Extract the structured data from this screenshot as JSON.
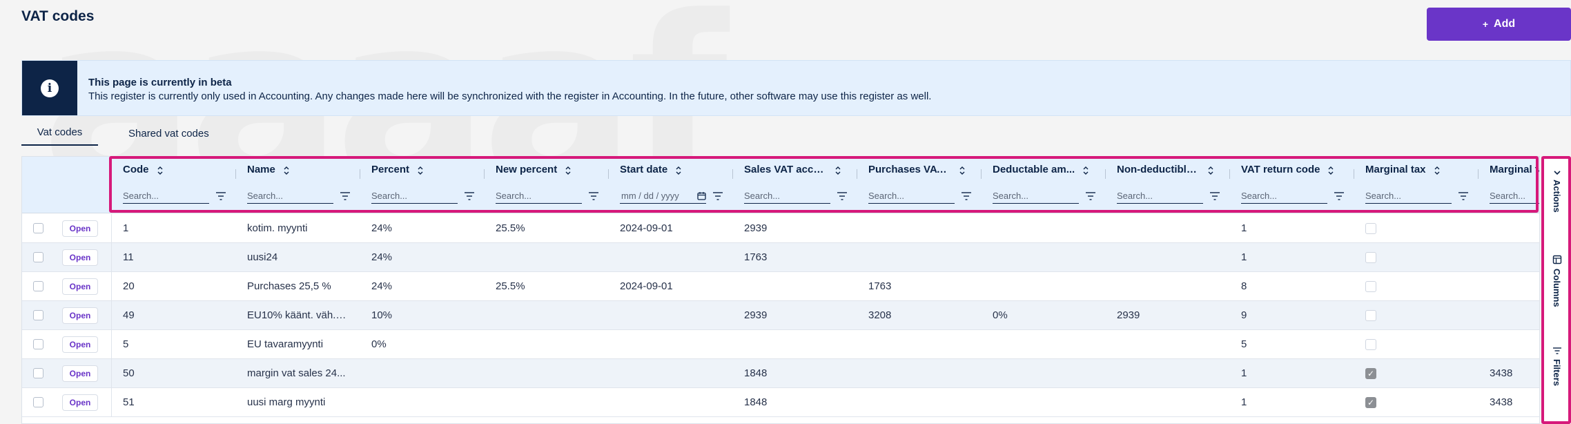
{
  "page": {
    "title": "VAT codes",
    "add_label": "Add",
    "watermark": "aaaaf"
  },
  "banner": {
    "title": "This page is currently in beta",
    "message": "This register is currently only used in Accounting. Any changes made here will be synchronized with the register in Accounting. In the future, other software may use this register as well.",
    "icon": "info-icon"
  },
  "tabs": [
    {
      "label": "Vat codes",
      "active": true
    },
    {
      "label": "Shared vat codes",
      "active": false
    }
  ],
  "columns": [
    {
      "key": "code",
      "label": "Code",
      "search_placeholder": "Search..."
    },
    {
      "key": "name",
      "label": "Name",
      "search_placeholder": "Search..."
    },
    {
      "key": "percent",
      "label": "Percent",
      "search_placeholder": "Search..."
    },
    {
      "key": "new_percent",
      "label": "New percent",
      "search_placeholder": "Search..."
    },
    {
      "key": "start_date",
      "label": "Start date",
      "search_placeholder": "mm / dd / yyyy"
    },
    {
      "key": "sales_vat",
      "label": "Sales VAT acco...",
      "search_placeholder": "Search..."
    },
    {
      "key": "purchases_vat",
      "label": "Purchases VAT ...",
      "search_placeholder": "Search..."
    },
    {
      "key": "deductable",
      "label": "Deductable am...",
      "search_placeholder": "Search..."
    },
    {
      "key": "non_deductible",
      "label": "Non-deductible...",
      "search_placeholder": "Search..."
    },
    {
      "key": "vat_return",
      "label": "VAT return code",
      "search_placeholder": "Search..."
    },
    {
      "key": "marginal_tax",
      "label": "Marginal tax",
      "search_placeholder": "Search..."
    },
    {
      "key": "marginal_t2",
      "label": "Marginal ta",
      "search_placeholder": "Search..."
    }
  ],
  "row_action_label": "Open",
  "rows": [
    {
      "code": "1",
      "name": "kotim. myynti",
      "percent": "24%",
      "new_percent": "25.5%",
      "start_date": "2024-09-01",
      "sales_vat": "2939",
      "purchases_vat": "",
      "deductable": "",
      "non_deductible": "",
      "vat_return": "1",
      "marginal_tax": false,
      "marginal_t2": ""
    },
    {
      "code": "11",
      "name": "uusi24",
      "percent": "24%",
      "new_percent": "",
      "start_date": "",
      "sales_vat": "1763",
      "purchases_vat": "",
      "deductable": "",
      "non_deductible": "",
      "vat_return": "1",
      "marginal_tax": false,
      "marginal_t2": ""
    },
    {
      "code": "20",
      "name": "Purchases 25,5 %",
      "percent": "24%",
      "new_percent": "25.5%",
      "start_date": "2024-09-01",
      "sales_vat": "",
      "purchases_vat": "1763",
      "deductable": "",
      "non_deductible": "",
      "vat_return": "8",
      "marginal_tax": false,
      "marginal_t2": ""
    },
    {
      "code": "49",
      "name": "EU10% käänt. väh.kel...",
      "percent": "10%",
      "new_percent": "",
      "start_date": "",
      "sales_vat": "2939",
      "purchases_vat": "3208",
      "deductable": "0%",
      "non_deductible": "2939",
      "vat_return": "9",
      "marginal_tax": false,
      "marginal_t2": ""
    },
    {
      "code": "5",
      "name": "EU tavaramyynti",
      "percent": "0%",
      "new_percent": "",
      "start_date": "",
      "sales_vat": "",
      "purchases_vat": "",
      "deductable": "",
      "non_deductible": "",
      "vat_return": "5",
      "marginal_tax": false,
      "marginal_t2": ""
    },
    {
      "code": "50",
      "name": "margin vat sales 24...",
      "percent": "",
      "new_percent": "",
      "start_date": "",
      "sales_vat": "1848",
      "purchases_vat": "",
      "deductable": "",
      "non_deductible": "",
      "vat_return": "1",
      "marginal_tax": true,
      "marginal_t2": "3438"
    },
    {
      "code": "51",
      "name": "uusi marg myynti",
      "percent": "",
      "new_percent": "",
      "start_date": "",
      "sales_vat": "1848",
      "purchases_vat": "",
      "deductable": "",
      "non_deductible": "",
      "vat_return": "1",
      "marginal_tax": true,
      "marginal_t2": "3438"
    }
  ],
  "side_panel": [
    {
      "label": "Actions",
      "icon": "chevron-down-icon"
    },
    {
      "label": "Columns",
      "icon": "columns-icon"
    },
    {
      "label": "Filters",
      "icon": "filter-icon"
    }
  ],
  "colors": {
    "accent": "#6a35c8",
    "navy": "#0d2447",
    "highlight": "#d6197a",
    "banner_bg": "#e4f0fd"
  }
}
